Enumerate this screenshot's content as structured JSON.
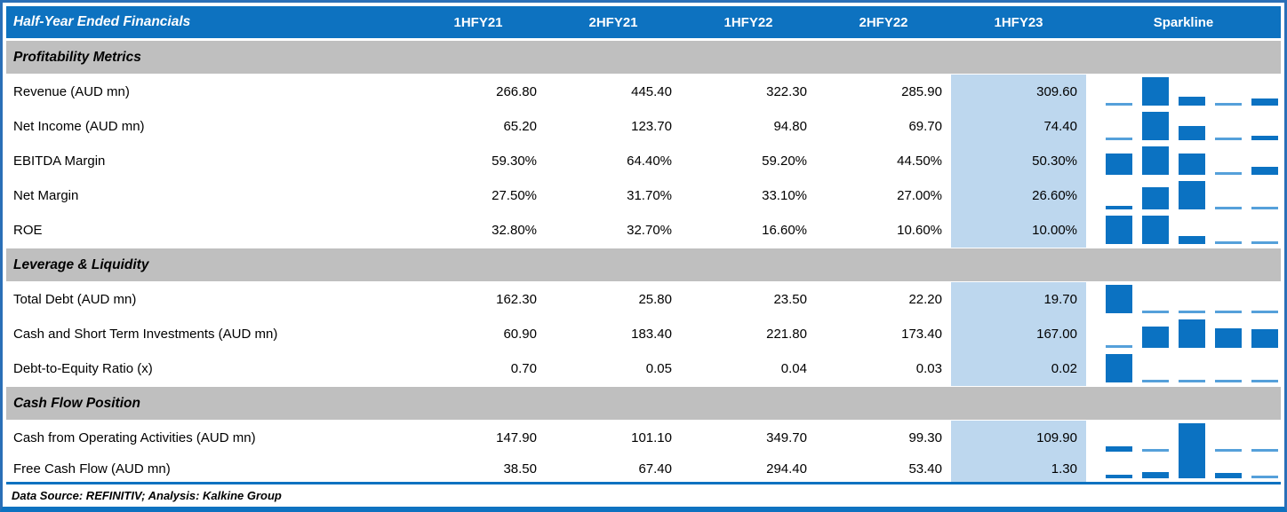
{
  "chart_data": {
    "type": "table",
    "title": "Half-Year Ended Financials",
    "period_columns": [
      "1HFY21",
      "2HFY21",
      "1HFY22",
      "2HFY22",
      "1HFY23"
    ],
    "sparkline_column": "Sparkline",
    "highlighted_column": "1HFY23",
    "sections": [
      {
        "label": "Profitability Metrics",
        "rows": [
          {
            "label": "Revenue (AUD mn)",
            "cells": [
              "266.80",
              "445.40",
              "322.30",
              "285.90",
              "309.60"
            ],
            "nums": [
              266.8,
              445.4,
              322.3,
              285.9,
              309.6
            ]
          },
          {
            "label": "Net Income (AUD mn)",
            "cells": [
              "65.20",
              "123.70",
              "94.80",
              "69.70",
              "74.40"
            ],
            "nums": [
              65.2,
              123.7,
              94.8,
              69.7,
              74.4
            ]
          },
          {
            "label": "EBITDA Margin",
            "cells": [
              "59.30%",
              "64.40%",
              "59.20%",
              "44.50%",
              "50.30%"
            ],
            "nums": [
              59.3,
              64.4,
              59.2,
              44.5,
              50.3
            ]
          },
          {
            "label": "Net Margin",
            "cells": [
              "27.50%",
              "31.70%",
              "33.10%",
              "27.00%",
              "26.60%"
            ],
            "nums": [
              27.5,
              31.7,
              33.1,
              27.0,
              26.6
            ]
          },
          {
            "label": "ROE",
            "cells": [
              "32.80%",
              "32.70%",
              "16.60%",
              "10.60%",
              "10.00%"
            ],
            "nums": [
              32.8,
              32.7,
              16.6,
              10.6,
              10.0
            ]
          }
        ]
      },
      {
        "label": "Leverage & Liquidity",
        "rows": [
          {
            "label": "Total Debt (AUD mn)",
            "cells": [
              "162.30",
              "25.80",
              "23.50",
              "22.20",
              "19.70"
            ],
            "nums": [
              162.3,
              25.8,
              23.5,
              22.2,
              19.7
            ]
          },
          {
            "label": "Cash and Short Term Investments (AUD mn)",
            "cells": [
              "60.90",
              "183.40",
              "221.80",
              "173.40",
              "167.00"
            ],
            "nums": [
              60.9,
              183.4,
              221.8,
              173.4,
              167.0
            ]
          },
          {
            "label": "Debt-to-Equity Ratio (x)",
            "cells": [
              "0.70",
              "0.05",
              "0.04",
              "0.03",
              "0.02"
            ],
            "nums": [
              0.7,
              0.05,
              0.04,
              0.03,
              0.02
            ]
          }
        ]
      },
      {
        "label": "Cash Flow Position",
        "rows": [
          {
            "label": "Cash from Operating Activities (AUD mn)",
            "cells": [
              "147.90",
              "101.10",
              "349.70",
              "99.30",
              "109.90"
            ],
            "nums": [
              147.9,
              101.1,
              349.7,
              99.3,
              109.9
            ]
          },
          {
            "label": "Free Cash Flow (AUD mn)",
            "cells": [
              "38.50",
              "67.40",
              "294.40",
              "53.40",
              "1.30"
            ],
            "nums": [
              38.5,
              67.4,
              294.4,
              53.4,
              1.3
            ]
          }
        ]
      }
    ],
    "layout": {
      "sparkline_style": "column bars per row, scaled from row minimum to row maximum",
      "grid": false,
      "legend": "none"
    },
    "footer": "Data Source: REFINITIV; Analysis: Kalkine Group"
  },
  "colors": {
    "header_blue": "#0d72c0",
    "section_gray": "#bfbfbf",
    "highlight_blue": "#bdd7ee",
    "sparkline_bar_blue": "#0b72c2",
    "sparkline_hairline_blue": "#55a0da",
    "outer_border_blue": "#2a6fb7",
    "header_text": "#ffffff",
    "body_text": "#000000"
  }
}
